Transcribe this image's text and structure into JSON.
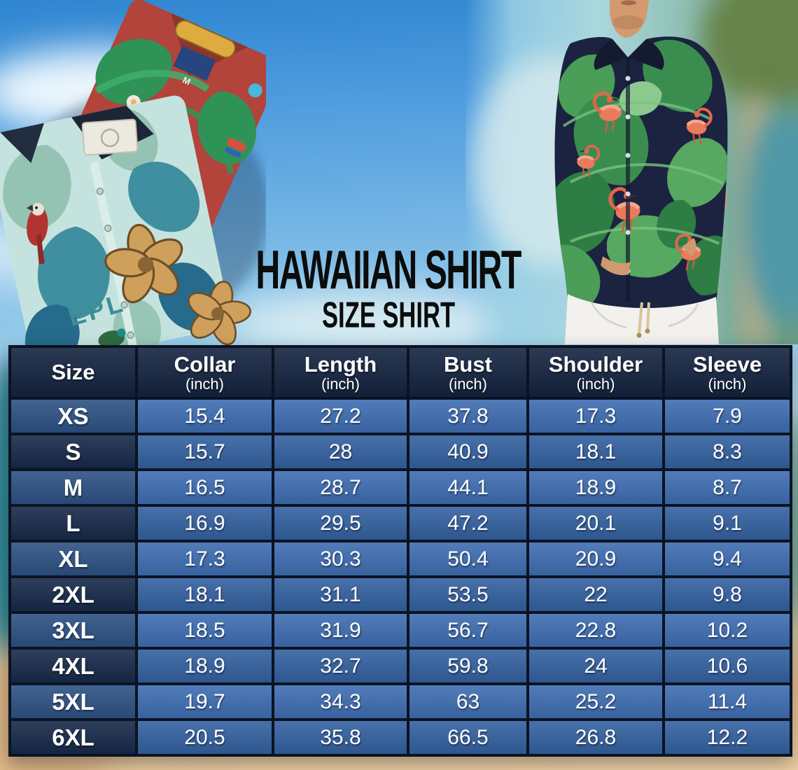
{
  "page": {
    "title": "HAWAIIAN SHIRT",
    "subtitle": "SIZE SHIRT"
  },
  "left_photo": {
    "red_shirt_size_tag": "M",
    "teal_shirt_print_text": "EPL"
  },
  "chart_data": {
    "type": "table",
    "title": "HAWAIIAN SHIRT",
    "subtitle": "SIZE SHIRT",
    "columns": [
      "Size",
      "Collar",
      "Length",
      "Bust",
      "Shoulder",
      "Sleeve"
    ],
    "column_units": [
      "",
      "(inch)",
      "(inch)",
      "(inch)",
      "(inch)",
      "(inch)"
    ],
    "rows": [
      {
        "label": "XS",
        "values": [
          15.4,
          27.2,
          37.8,
          17.3,
          7.9
        ]
      },
      {
        "label": "S",
        "values": [
          15.7,
          28,
          40.9,
          18.1,
          8.3
        ]
      },
      {
        "label": "M",
        "values": [
          16.5,
          28.7,
          44.1,
          18.9,
          8.7
        ]
      },
      {
        "label": "L",
        "values": [
          16.9,
          29.5,
          47.2,
          20.1,
          9.1
        ]
      },
      {
        "label": "XL",
        "values": [
          17.3,
          30.3,
          50.4,
          20.9,
          9.4
        ]
      },
      {
        "label": "2XL",
        "values": [
          18.1,
          31.1,
          53.5,
          22,
          9.8
        ]
      },
      {
        "label": "3XL",
        "values": [
          18.5,
          31.9,
          56.7,
          22.8,
          10.2
        ]
      },
      {
        "label": "4XL",
        "values": [
          18.9,
          32.7,
          59.8,
          24,
          10.6
        ]
      },
      {
        "label": "5XL",
        "values": [
          19.7,
          34.3,
          63,
          25.2,
          11.4
        ]
      },
      {
        "label": "6XL",
        "values": [
          20.5,
          35.8,
          66.5,
          26.8,
          12.2
        ]
      }
    ]
  },
  "colors": {
    "header_bg": "#13233f",
    "size_cell_odd": "#2c5183",
    "size_cell_even": "#16294a",
    "data_cell_odd": "#3e6db1",
    "data_cell_even": "#33609f",
    "table_border": "#0b1322",
    "table_text": "#ffffff",
    "title_text": "#0c0c0c",
    "sky_blue": "#3a8fd8",
    "sand": "#ebcda0"
  }
}
